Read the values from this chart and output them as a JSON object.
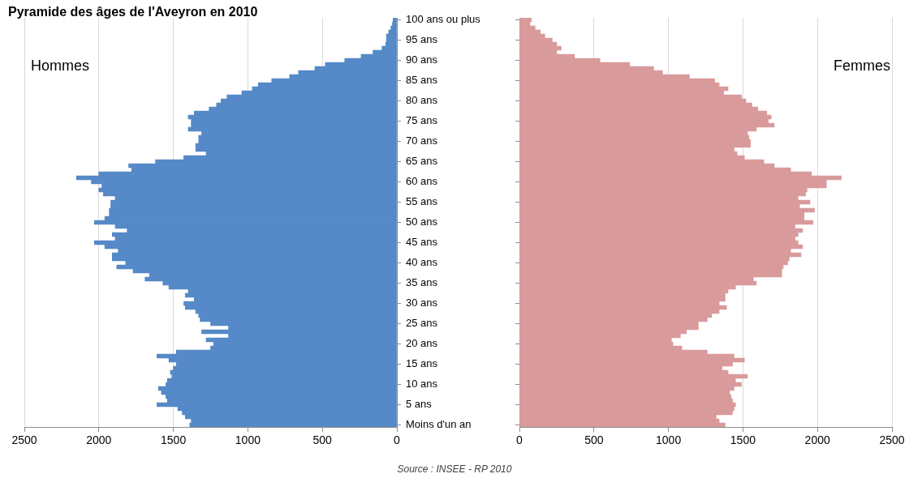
{
  "chart_data": [
    {
      "type": "bar",
      "orientation": "horizontal",
      "title": "Pyramide des âges de l'Aveyron en 2010",
      "annotations": [
        "Source : INSEE - RP 2010"
      ],
      "categories": [
        "100 ans ou plus",
        null,
        null,
        null,
        null,
        "95 ans",
        null,
        null,
        null,
        null,
        "90 ans",
        null,
        null,
        null,
        null,
        "85 ans",
        null,
        null,
        null,
        null,
        "80 ans",
        null,
        null,
        null,
        null,
        "75 ans",
        null,
        null,
        null,
        null,
        "70 ans",
        null,
        null,
        null,
        null,
        "65 ans",
        null,
        null,
        null,
        null,
        "60 ans",
        null,
        null,
        null,
        null,
        "55 ans",
        null,
        null,
        null,
        null,
        "50 ans",
        null,
        null,
        null,
        null,
        "45 ans",
        null,
        null,
        null,
        null,
        "40 ans",
        null,
        null,
        null,
        null,
        "35 ans",
        null,
        null,
        null,
        null,
        "30 ans",
        null,
        null,
        null,
        null,
        "25 ans",
        null,
        null,
        null,
        null,
        "20 ans",
        null,
        null,
        null,
        null,
        "15 ans",
        null,
        null,
        null,
        null,
        "10 ans",
        null,
        null,
        null,
        null,
        "5 ans",
        null,
        null,
        null,
        null,
        "Moins d'un an"
      ],
      "series": [
        {
          "name": "Hommes",
          "color": "#5589c7",
          "values": [
            25,
            30,
            40,
            55,
            70,
            70,
            75,
            100,
            160,
            240,
            350,
            480,
            550,
            660,
            720,
            840,
            930,
            970,
            1040,
            1140,
            1180,
            1210,
            1260,
            1360,
            1400,
            1380,
            1380,
            1400,
            1310,
            1330,
            1330,
            1350,
            1350,
            1280,
            1430,
            1620,
            1800,
            1780,
            2000,
            2150,
            2050,
            1980,
            2000,
            1970,
            1890,
            1920,
            1920,
            1930,
            1930,
            1960,
            2030,
            1890,
            1810,
            1910,
            1890,
            2030,
            1960,
            1870,
            1910,
            1910,
            1820,
            1880,
            1770,
            1660,
            1690,
            1570,
            1530,
            1400,
            1420,
            1360,
            1430,
            1420,
            1350,
            1330,
            1320,
            1250,
            1130,
            1310,
            1130,
            1280,
            1230,
            1250,
            1480,
            1610,
            1530,
            1480,
            1500,
            1520,
            1510,
            1540,
            1550,
            1600,
            1580,
            1550,
            1540,
            1610,
            1470,
            1440,
            1420,
            1380,
            1390
          ]
        }
      ],
      "xlim": [
        2500,
        0
      ],
      "xticks": [
        2500,
        2000,
        1500,
        1000,
        500,
        0
      ],
      "grid": "x"
    },
    {
      "type": "bar",
      "orientation": "horizontal",
      "categories": [
        null,
        null,
        null,
        null,
        null,
        null,
        null,
        null,
        null,
        null,
        null,
        null,
        null,
        null,
        null,
        null,
        null,
        null,
        null,
        null,
        null,
        null,
        null,
        null,
        null,
        null,
        null,
        null,
        null,
        null,
        null,
        null,
        null,
        null,
        null,
        null,
        null,
        null,
        null,
        null,
        null,
        null,
        null,
        null,
        null,
        null,
        null,
        null,
        null,
        null,
        null,
        null,
        null,
        null,
        null,
        null,
        null,
        null,
        null,
        null,
        null,
        null,
        null,
        null,
        null,
        null,
        null,
        null,
        null,
        null,
        null,
        null,
        null,
        null,
        null,
        null,
        null,
        null,
        null,
        null,
        null,
        null,
        null,
        null,
        null,
        null,
        null,
        null,
        null,
        null,
        null,
        null,
        null,
        null,
        null,
        null,
        null,
        null,
        null,
        null,
        null
      ],
      "series": [
        {
          "name": "Femmes",
          "color": "#d99a9b",
          "values": [
            80,
            70,
            105,
            140,
            170,
            220,
            250,
            280,
            250,
            370,
            540,
            740,
            900,
            960,
            1140,
            1310,
            1340,
            1400,
            1370,
            1490,
            1520,
            1560,
            1600,
            1660,
            1690,
            1670,
            1710,
            1590,
            1530,
            1540,
            1550,
            1550,
            1440,
            1460,
            1510,
            1640,
            1710,
            1820,
            1960,
            2160,
            2060,
            2060,
            1930,
            1920,
            1870,
            1950,
            1880,
            1980,
            1910,
            1910,
            1970,
            1850,
            1900,
            1870,
            1850,
            1870,
            1900,
            1820,
            1890,
            1810,
            1800,
            1770,
            1760,
            1760,
            1570,
            1590,
            1450,
            1400,
            1380,
            1380,
            1340,
            1390,
            1340,
            1290,
            1260,
            1200,
            1200,
            1120,
            1080,
            1020,
            1030,
            1090,
            1260,
            1440,
            1510,
            1430,
            1360,
            1400,
            1530,
            1450,
            1490,
            1440,
            1410,
            1420,
            1430,
            1450,
            1440,
            1430,
            1320,
            1340,
            1380
          ]
        }
      ],
      "xlim": [
        0,
        2500
      ],
      "xticks": [
        0,
        500,
        1000,
        1500,
        2000,
        2500
      ],
      "grid": "x",
      "tick_labels": "x"
    }
  ]
}
